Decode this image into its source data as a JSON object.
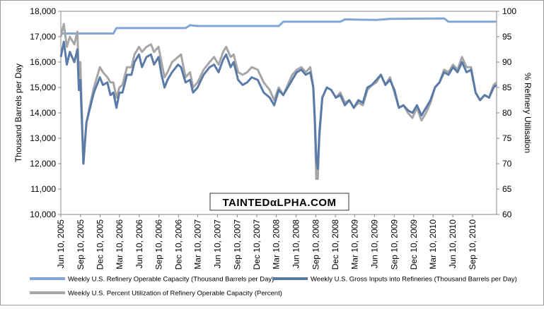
{
  "chart_data": {
    "type": "line",
    "x": [
      "2005-06-10",
      "2005-06-24",
      "2005-07-08",
      "2005-07-22",
      "2005-08-12",
      "2005-08-26",
      "2005-09-02",
      "2005-09-09",
      "2005-09-23",
      "2005-10-07",
      "2005-10-21",
      "2005-11-11",
      "2005-12-09",
      "2005-12-23",
      "2006-01-13",
      "2006-01-27",
      "2006-02-10",
      "2006-02-24",
      "2006-03-10",
      "2006-03-24",
      "2006-04-14",
      "2006-05-05",
      "2006-05-19",
      "2006-06-09",
      "2006-06-23",
      "2006-07-14",
      "2006-08-04",
      "2006-08-18",
      "2006-09-08",
      "2006-09-22",
      "2006-10-06",
      "2006-10-20",
      "2006-11-10",
      "2006-12-08",
      "2006-12-22",
      "2007-01-12",
      "2007-02-02",
      "2007-02-16",
      "2007-03-09",
      "2007-04-06",
      "2007-05-04",
      "2007-05-25",
      "2007-06-15",
      "2007-07-06",
      "2007-07-20",
      "2007-08-10",
      "2007-08-24",
      "2007-09-14",
      "2007-10-05",
      "2007-10-26",
      "2007-11-16",
      "2007-12-14",
      "2008-01-11",
      "2008-02-08",
      "2008-02-29",
      "2008-03-21",
      "2008-04-11",
      "2008-05-02",
      "2008-05-23",
      "2008-06-13",
      "2008-07-04",
      "2008-07-25",
      "2008-08-15",
      "2008-08-29",
      "2008-09-05",
      "2008-09-12",
      "2008-09-19",
      "2008-09-26",
      "2008-10-10",
      "2008-10-31",
      "2008-11-21",
      "2008-12-12",
      "2009-01-02",
      "2009-01-23",
      "2009-02-13",
      "2009-03-06",
      "2009-03-27",
      "2009-04-17",
      "2009-05-08",
      "2009-05-29",
      "2009-06-19",
      "2009-07-10",
      "2009-07-31",
      "2009-08-21",
      "2009-09-11",
      "2009-10-02",
      "2009-10-23",
      "2009-11-13",
      "2009-12-04",
      "2009-12-25",
      "2010-01-15",
      "2010-02-05",
      "2010-02-26",
      "2010-03-19",
      "2010-04-09",
      "2010-04-30",
      "2010-05-21",
      "2010-06-11",
      "2010-07-02",
      "2010-07-23",
      "2010-08-13",
      "2010-09-03",
      "2010-09-24",
      "2010-10-15",
      "2010-11-05",
      "2010-11-26",
      "2010-12-17",
      "2010-12-31"
    ],
    "series": [
      {
        "name": "Weekly U.S. Refinery Operable Capacity  (Thousand Barrels per Day)",
        "color": "#7fa6d6",
        "x": [
          "2005-06-10",
          "2006-02-10",
          "2006-02-24",
          "2007-01-12",
          "2007-02-02",
          "2007-03-09",
          "2008-03-21",
          "2008-04-11",
          "2009-01-02",
          "2009-01-23",
          "2009-06-19",
          "2009-08-21",
          "2010-04-30",
          "2010-05-21",
          "2010-12-31"
        ],
        "values": [
          17125,
          17125,
          17340,
          17340,
          17450,
          17420,
          17420,
          17590,
          17590,
          17680,
          17660,
          17700,
          17720,
          17590,
          17590
        ]
      },
      {
        "name": "Weekly U.S. Gross Inputs into Refineries  (Thousand Barrels per Day)",
        "color": "#5a7aa8",
        "values": [
          16200,
          16800,
          15900,
          16400,
          16000,
          16500,
          14900,
          15300,
          12000,
          13600,
          14100,
          14800,
          15400,
          15100,
          15200,
          14700,
          14800,
          14200,
          14800,
          14800,
          15500,
          15500,
          16000,
          16300,
          15800,
          16200,
          16300,
          15900,
          16200,
          15500,
          15000,
          15300,
          15600,
          15900,
          15800,
          15200,
          15300,
          14800,
          15000,
          15500,
          15800,
          15900,
          15600,
          16100,
          16300,
          15800,
          16000,
          15300,
          15100,
          15200,
          15400,
          15300,
          14800,
          14600,
          14300,
          14900,
          14700,
          15000,
          15300,
          15600,
          15700,
          15500,
          15600,
          15000,
          13800,
          12200,
          11800,
          13200,
          14600,
          15000,
          14900,
          14600,
          14700,
          14300,
          14500,
          14200,
          14500,
          14400,
          15000,
          15100,
          15300,
          15500,
          15100,
          15300,
          14900,
          14200,
          14300,
          14100,
          14000,
          14300,
          13900,
          14200,
          14500,
          15000,
          15200,
          15600,
          15500,
          15800,
          15600,
          16000,
          15600,
          15700,
          14800,
          14500,
          14700,
          14600,
          15000,
          15100
        ]
      },
      {
        "name": "Weekly U.S. Percent Utilization of Refinery Operable Capacity  (Percent)",
        "color": "#a6a6a6",
        "axis": "y2",
        "values": [
          95,
          97.5,
          93,
          95,
          93.5,
          96,
          87,
          90,
          70,
          78,
          81,
          85,
          89,
          88,
          87,
          86,
          86,
          83,
          85,
          85.5,
          89,
          89,
          91.5,
          93,
          92,
          93,
          93.5,
          92,
          93,
          90,
          87,
          88,
          90,
          91,
          91.5,
          87,
          88,
          85,
          86,
          88.5,
          90,
          91,
          89.5,
          92,
          93,
          91,
          91.5,
          88,
          87.5,
          88,
          89,
          88.5,
          86,
          84.5,
          82.5,
          85,
          83.5,
          85.5,
          87.5,
          88.5,
          89,
          88,
          89,
          85,
          78,
          67,
          67,
          75,
          83,
          85,
          84.5,
          83,
          84,
          82,
          82.5,
          81,
          82,
          81.5,
          84.5,
          85.5,
          86,
          87.5,
          85.5,
          87,
          84,
          81,
          81.5,
          80,
          79,
          81,
          78.5,
          80,
          82,
          85,
          86,
          88.5,
          88,
          89.5,
          88.5,
          91,
          89,
          89,
          84,
          82.5,
          83.5,
          83,
          85.5,
          86
        ]
      }
    ],
    "xlim": [
      "2005-06-10",
      "2010-12-31"
    ],
    "xticks": [
      {
        "value": "2005-06-10",
        "label": "Jun 10, 2005"
      },
      {
        "value": "2005-09-10",
        "label": "Sep 10, 2005"
      },
      {
        "value": "2005-12-10",
        "label": "Dec 10, 2005"
      },
      {
        "value": "2006-03-10",
        "label": "Mar 10, 2006"
      },
      {
        "value": "2006-06-10",
        "label": "Jun 10, 2006"
      },
      {
        "value": "2006-09-10",
        "label": "Sep 10, 2006"
      },
      {
        "value": "2006-12-10",
        "label": "Dec 10, 2006"
      },
      {
        "value": "2007-03-10",
        "label": "Mar 10, 2007"
      },
      {
        "value": "2007-06-10",
        "label": "Jun 10, 2007"
      },
      {
        "value": "2007-09-10",
        "label": "Sep 10, 2007"
      },
      {
        "value": "2007-12-10",
        "label": "Dec 10, 2007"
      },
      {
        "value": "2008-03-10",
        "label": "Mar 10, 2008"
      },
      {
        "value": "2008-06-10",
        "label": "Jun 10, 2008"
      },
      {
        "value": "2008-09-10",
        "label": "Sep 10, 2008"
      },
      {
        "value": "2008-12-10",
        "label": "Dec 10, 2008"
      },
      {
        "value": "2009-03-10",
        "label": "Mar 10, 2009"
      },
      {
        "value": "2009-06-10",
        "label": "Jun 10, 2009"
      },
      {
        "value": "2009-09-10",
        "label": "Sep 10, 2009"
      },
      {
        "value": "2009-12-10",
        "label": "Dec 10, 2009"
      },
      {
        "value": "2010-03-10",
        "label": "Mar 10, 2010"
      },
      {
        "value": "2010-06-10",
        "label": "Jun 10, 2010"
      },
      {
        "value": "2010-09-10",
        "label": "Sep 10, 2010"
      }
    ],
    "ylim": [
      10000,
      18000
    ],
    "yticks": [
      {
        "value": 10000,
        "label": "10,000"
      },
      {
        "value": 11000,
        "label": "11,000"
      },
      {
        "value": 12000,
        "label": "12,000"
      },
      {
        "value": 13000,
        "label": "13,000"
      },
      {
        "value": 14000,
        "label": "14,000"
      },
      {
        "value": 15000,
        "label": "15,000"
      },
      {
        "value": 16000,
        "label": "16,000"
      },
      {
        "value": 17000,
        "label": "17,000"
      },
      {
        "value": 18000,
        "label": "18,000"
      }
    ],
    "y2lim": [
      60,
      100
    ],
    "y2ticks": [
      60,
      65,
      70,
      75,
      80,
      85,
      90,
      95,
      100
    ],
    "ylabel": "Thousand Barrels per Day",
    "y2label": "% Refinery Utilisation",
    "watermark": "TAINTEDαLPHA.COM",
    "grid": false
  }
}
